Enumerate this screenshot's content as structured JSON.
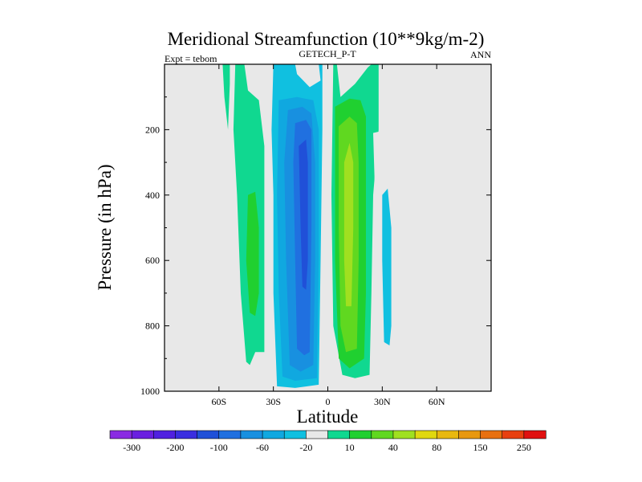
{
  "chart_data": {
    "type": "contour",
    "title": "Meridional Streamfunction (10**9kg/m-2)",
    "subtitle_left": "Expt = tebom",
    "subtitle_center": "GETECH_P-T",
    "subtitle_right": "ANN",
    "xlabel": "Latitude",
    "ylabel": "Pressure (in hPa)",
    "xlim": [
      -90,
      90
    ],
    "ylim": [
      0,
      1000
    ],
    "y_inverted": true,
    "x_ticks": [
      {
        "value": -60,
        "label": "60S"
      },
      {
        "value": -30,
        "label": "30S"
      },
      {
        "value": 0,
        "label": "0"
      },
      {
        "value": 30,
        "label": "30N"
      },
      {
        "value": 60,
        "label": "60N"
      }
    ],
    "y_ticks": [
      {
        "value": 200,
        "label": "200"
      },
      {
        "value": 400,
        "label": "400"
      },
      {
        "value": 600,
        "label": "600"
      },
      {
        "value": 800,
        "label": "800"
      },
      {
        "value": 1000,
        "label": "1000"
      }
    ],
    "levels": [
      -300,
      -250,
      -200,
      -150,
      -100,
      -80,
      -60,
      -40,
      -20,
      -10,
      10,
      20,
      40,
      60,
      80,
      100,
      150,
      200,
      250,
      300
    ],
    "colorbar_labels": [
      "-300",
      "-200",
      "-100",
      "-60",
      "-20",
      "10",
      "40",
      "80",
      "150",
      "250"
    ],
    "colors": [
      "#8a2be2",
      "#6a1fe0",
      "#5020e0",
      "#3a2ee0",
      "#2050d8",
      "#2070e0",
      "#1890e0",
      "#10a8e0",
      "#10c0e0",
      "#e8e8e8",
      "#10d890",
      "#20d030",
      "#60d820",
      "#a0e020",
      "#e0d810",
      "#e8b810",
      "#e89810",
      "#e87010",
      "#e84010",
      "#e01010"
    ],
    "background": "#e8e8e8",
    "regions": [
      {
        "name": "region-sh-cell-outer",
        "level": -20,
        "polygon": [
          [
            -30,
            0
          ],
          [
            -18,
            0
          ],
          [
            -17,
            30
          ],
          [
            -10,
            70
          ],
          [
            -4,
            50
          ],
          [
            -5,
            0
          ],
          [
            -3,
            0
          ],
          [
            -3,
            200
          ],
          [
            -4,
            600
          ],
          [
            -5,
            980
          ],
          [
            -18,
            990
          ],
          [
            -28,
            985
          ],
          [
            -30,
            700
          ],
          [
            -30,
            400
          ],
          [
            -31,
            200
          ]
        ]
      },
      {
        "name": "region-sh-cell-40",
        "level": -40,
        "polygon": [
          [
            -27,
            110
          ],
          [
            -17,
            100
          ],
          [
            -8,
            110
          ],
          [
            -5,
            200
          ],
          [
            -5,
            600
          ],
          [
            -6,
            960
          ],
          [
            -18,
            968
          ],
          [
            -25,
            955
          ],
          [
            -27,
            700
          ],
          [
            -28,
            400
          ]
        ]
      },
      {
        "name": "region-sh-cell-60",
        "level": -60,
        "polygon": [
          [
            -22,
            140
          ],
          [
            -14,
            130
          ],
          [
            -9,
            150
          ],
          [
            -7,
            300
          ],
          [
            -7,
            600
          ],
          [
            -8,
            920
          ],
          [
            -15,
            940
          ],
          [
            -21,
            920
          ],
          [
            -23,
            600
          ],
          [
            -24,
            300
          ]
        ]
      },
      {
        "name": "region-sh-cell-80",
        "level": -80,
        "polygon": [
          [
            -18,
            180
          ],
          [
            -12,
            170
          ],
          [
            -9,
            200
          ],
          [
            -9,
            500
          ],
          [
            -10,
            880
          ],
          [
            -13,
            890
          ],
          [
            -17,
            870
          ],
          [
            -18,
            600
          ],
          [
            -19,
            300
          ]
        ]
      },
      {
        "name": "region-sh-cell-100",
        "level": -100,
        "polygon": [
          [
            -16,
            250
          ],
          [
            -12,
            230
          ],
          [
            -11,
            300
          ],
          [
            -11,
            600
          ],
          [
            -12,
            690
          ],
          [
            -14,
            680
          ],
          [
            -15,
            500
          ]
        ]
      },
      {
        "name": "region-sh-polar-cell",
        "level": 10,
        "polygon": [
          [
            -51,
            0
          ],
          [
            -46,
            0
          ],
          [
            -44,
            80
          ],
          [
            -38,
            110
          ],
          [
            -35,
            250
          ],
          [
            -35,
            600
          ],
          [
            -35,
            880
          ],
          [
            -40,
            880
          ],
          [
            -43,
            920
          ],
          [
            -45,
            910
          ],
          [
            -48,
            700
          ],
          [
            -50,
            400
          ],
          [
            -52,
            200
          ]
        ]
      },
      {
        "name": "region-sh-polar-40",
        "level": 20,
        "polygon": [
          [
            -44,
            400
          ],
          [
            -40,
            390
          ],
          [
            -38,
            500
          ],
          [
            -38,
            700
          ],
          [
            -40,
            770
          ],
          [
            -43,
            760
          ],
          [
            -45,
            600
          ]
        ]
      },
      {
        "name": "region-sh-high-lat",
        "level": 10,
        "polygon": [
          [
            -58,
            0
          ],
          [
            -54,
            0
          ],
          [
            -54,
            60
          ],
          [
            -55,
            200
          ],
          [
            -57,
            100
          ]
        ]
      },
      {
        "name": "region-nh-cell-outer",
        "level": 10,
        "polygon": [
          [
            3,
            0
          ],
          [
            5,
            0
          ],
          [
            7,
            100
          ],
          [
            15,
            60
          ],
          [
            22,
            10
          ],
          [
            24,
            0
          ],
          [
            28,
            0
          ],
          [
            28,
            200
          ],
          [
            25,
            400
          ],
          [
            24,
            700
          ],
          [
            23,
            950
          ],
          [
            15,
            960
          ],
          [
            8,
            950
          ],
          [
            3,
            800
          ],
          [
            2,
            400
          ]
        ]
      },
      {
        "name": "region-nh-cell-40",
        "level": 20,
        "polygon": [
          [
            4,
            130
          ],
          [
            12,
            105
          ],
          [
            18,
            110
          ],
          [
            21,
            160
          ],
          [
            21,
            400
          ],
          [
            21,
            700
          ],
          [
            20,
            900
          ],
          [
            12,
            930
          ],
          [
            6,
            900
          ],
          [
            4,
            600
          ]
        ]
      },
      {
        "name": "region-nh-cell-60",
        "level": 40,
        "polygon": [
          [
            6,
            190
          ],
          [
            12,
            160
          ],
          [
            16,
            180
          ],
          [
            17,
            300
          ],
          [
            17,
            600
          ],
          [
            16,
            870
          ],
          [
            10,
            880
          ],
          [
            7,
            800
          ],
          [
            6,
            500
          ]
        ]
      },
      {
        "name": "region-nh-cell-80",
        "level": 60,
        "polygon": [
          [
            9,
            300
          ],
          [
            12,
            240
          ],
          [
            14,
            300
          ],
          [
            14,
            500
          ],
          [
            13,
            740
          ],
          [
            10,
            740
          ],
          [
            9,
            600
          ]
        ]
      },
      {
        "name": "region-nh-polar-cell",
        "level": -10,
        "polygon": [
          [
            25,
            210
          ],
          [
            33,
            200
          ],
          [
            35,
            350
          ],
          [
            36,
            600
          ],
          [
            36,
            900
          ],
          [
            30,
            950
          ],
          [
            25,
            950
          ],
          [
            27,
            600
          ],
          [
            26,
            400
          ]
        ]
      },
      {
        "name": "region-nh-polar-20",
        "level": -20,
        "polygon": [
          [
            30,
            400
          ],
          [
            33,
            380
          ],
          [
            35,
            500
          ],
          [
            35,
            800
          ],
          [
            34,
            860
          ],
          [
            31,
            850
          ],
          [
            30,
            600
          ]
        ]
      },
      {
        "name": "region-nh-high-lat",
        "level": -10,
        "polygon": [
          [
            42,
            0
          ],
          [
            48,
            0
          ],
          [
            48,
            200
          ],
          [
            43,
            250
          ],
          [
            41,
            150
          ]
        ]
      },
      {
        "name": "region-nh-high-lat-2",
        "level": -10,
        "polygon": [
          [
            33,
            0
          ],
          [
            37,
            0
          ],
          [
            37,
            150
          ],
          [
            34,
            200
          ],
          [
            32,
            100
          ]
        ]
      }
    ]
  }
}
